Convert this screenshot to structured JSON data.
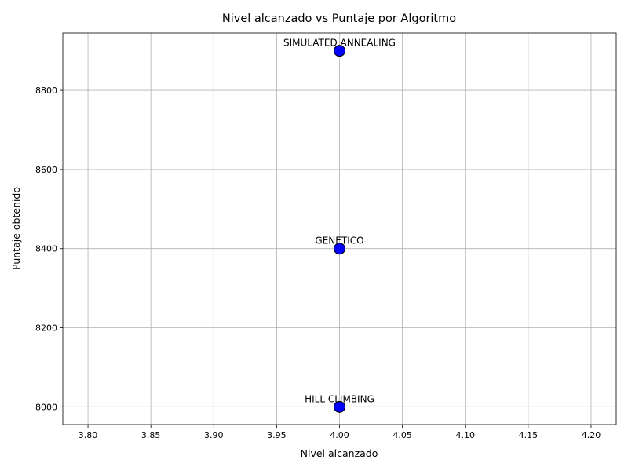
{
  "chart_data": {
    "type": "scatter",
    "title": "Nivel alcanzado vs Puntaje por Algoritmo",
    "xlabel": "Nivel alcanzado",
    "ylabel": "Puntaje obtenido",
    "xlim": [
      3.78,
      4.22
    ],
    "ylim": [
      7955,
      8945
    ],
    "xticks": [
      3.8,
      3.85,
      3.9,
      3.95,
      4.0,
      4.05,
      4.1,
      4.15,
      4.2
    ],
    "xtick_labels": [
      "3.80",
      "3.85",
      "3.90",
      "3.95",
      "4.00",
      "4.05",
      "4.10",
      "4.15",
      "4.20"
    ],
    "yticks": [
      8000,
      8200,
      8400,
      8600,
      8800
    ],
    "ytick_labels": [
      "8000",
      "8200",
      "8400",
      "8600",
      "8800"
    ],
    "grid": true,
    "marker_color": "#0000ff",
    "marker_edge_color": "#000000",
    "points": [
      {
        "label": "SIMULATED ANNEALING",
        "x": 4.0,
        "y": 8900
      },
      {
        "label": "GENETICO",
        "x": 4.0,
        "y": 8400
      },
      {
        "label": "HILL CLIMBING",
        "x": 4.0,
        "y": 8000
      }
    ]
  }
}
